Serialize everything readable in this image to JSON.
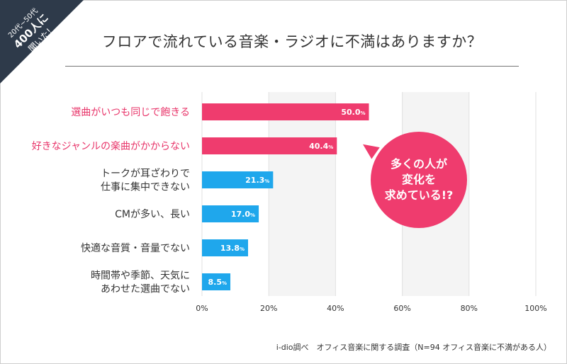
{
  "corner_badge": {
    "line1": "20代~50代",
    "line2": "400人に",
    "line3": "聞いた!"
  },
  "title": "フロアで流れている音楽・ラジオに不満はありますか？",
  "callout": {
    "lines": [
      "多くの人が",
      "変化を",
      "求めている!?"
    ]
  },
  "source": "i-dio調べ　オフィス音楽に関する調査（N=94 オフィス音楽に不満がある人）",
  "colors": {
    "highlight": "#ef3c6e",
    "normal": "#1fa7ec",
    "highlight_text": "#e8356a",
    "gridband": "#f4f4f4",
    "corner": "#2e3a4a"
  },
  "chart_data": {
    "type": "bar",
    "orientation": "horizontal",
    "categories": [
      [
        "選曲がいつも同じで飽きる"
      ],
      [
        "好きなジャンルの楽曲がかからない"
      ],
      [
        "トークが耳ざわりで",
        "仕事に集中できない"
      ],
      [
        "CMが多い、長い"
      ],
      [
        "快適な音質・音量でない"
      ],
      [
        "時間帯や季節、天気に",
        "あわせた選曲でない"
      ]
    ],
    "values": [
      50.0,
      40.4,
      21.3,
      17.0,
      13.8,
      8.5
    ],
    "value_labels": [
      "50.0",
      "40.4",
      "21.3",
      "17.0",
      "13.8",
      "8.5"
    ],
    "value_unit": "%",
    "highlighted": [
      true,
      true,
      false,
      false,
      false,
      false
    ],
    "xlim": [
      0,
      100
    ],
    "xticks": [
      "0%",
      "20%",
      "40%",
      "60%",
      "80%",
      "100%"
    ],
    "xtick_values": [
      0,
      20,
      40,
      60,
      80,
      100
    ],
    "grid": true
  }
}
